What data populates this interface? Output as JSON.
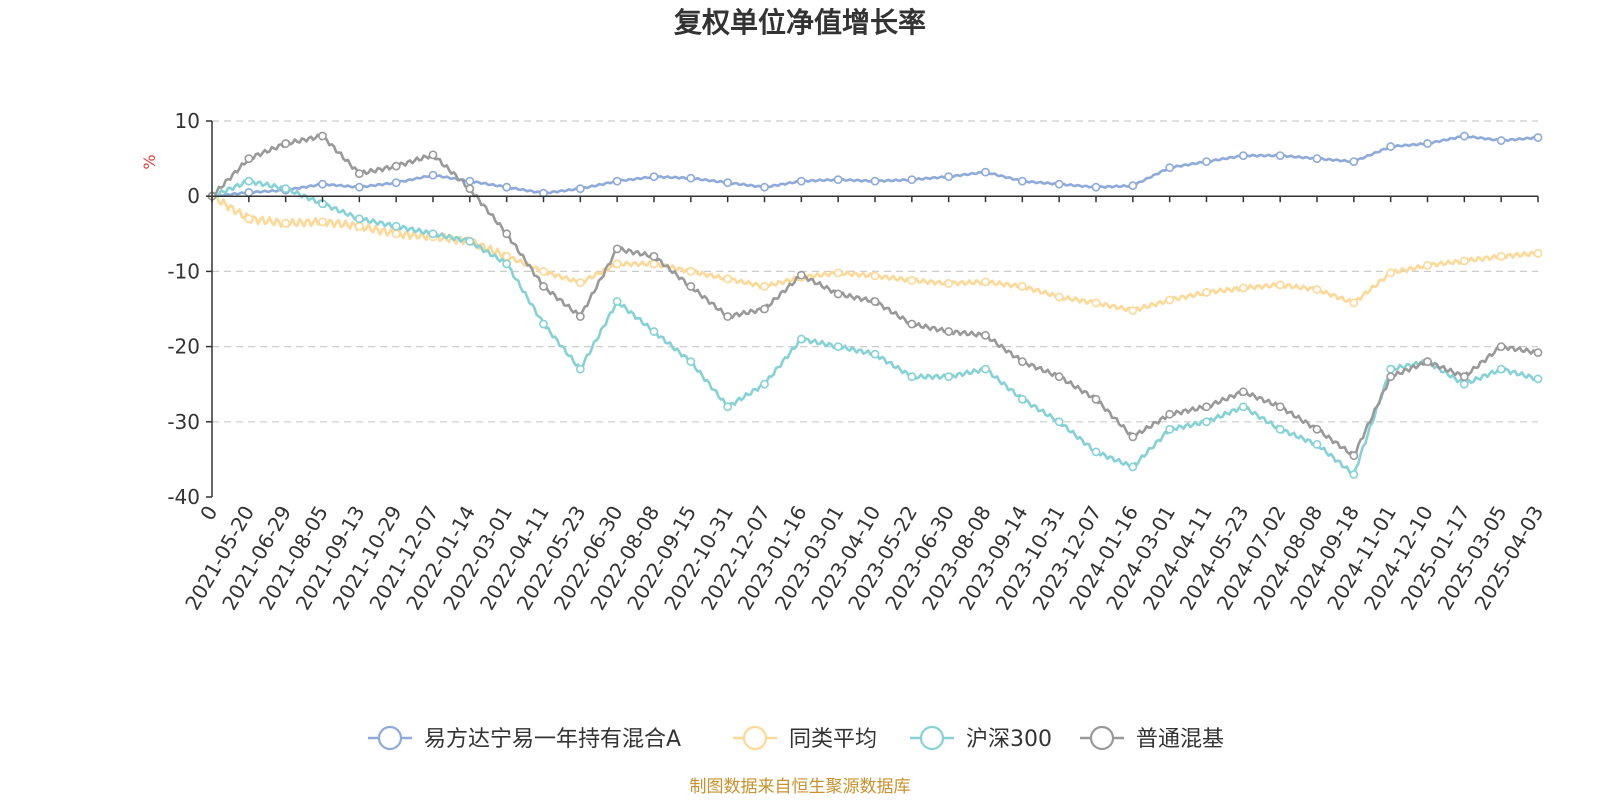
{
  "colors": {
    "fund": "#8eaadb",
    "peer_avg": "#fdd896",
    "hs300": "#85d2d6",
    "mixed": "#999999",
    "axis": "#333333",
    "grid": "#cccccc",
    "unit": "#e63a3a",
    "source": "#c8912c"
  },
  "chart_data": {
    "type": "line",
    "title": "复权单位净值增长率",
    "ylabel": "%",
    "ylim": [
      -40,
      10
    ],
    "y_ticks": [
      "10",
      "0",
      "-10",
      "-20",
      "-30",
      "-40"
    ],
    "y_tick_values": [
      10,
      0,
      -10,
      -20,
      -30,
      -40
    ],
    "grid": true,
    "legend_position": "bottom-center",
    "source_note": "制图数据来自恒生聚源数据库",
    "x_tick_labels": [
      "0",
      "2021-05-20",
      "2021-06-29",
      "2021-08-05",
      "2021-09-13",
      "2021-10-29",
      "2021-12-07",
      "2022-01-14",
      "2022-03-01",
      "2022-04-11",
      "2022-05-23",
      "2022-06-30",
      "2022-08-08",
      "2022-09-15",
      "2022-10-31",
      "2022-12-07",
      "2023-01-16",
      "2023-03-01",
      "2023-04-10",
      "2023-05-22",
      "2023-06-30",
      "2023-08-08",
      "2023-09-14",
      "2023-10-31",
      "2023-12-07",
      "2024-01-16",
      "2024-03-01",
      "2024-04-11",
      "2024-05-23",
      "2024-07-02",
      "2024-08-08",
      "2024-09-18",
      "2024-11-01",
      "2024-12-10",
      "2025-01-17",
      "2025-03-05",
      "2025-04-03"
    ],
    "series": [
      {
        "name": "易方达宁易一年持有混合A",
        "color_key": "fund",
        "values": [
          0,
          0.5,
          0.8,
          1.6,
          1.2,
          1.8,
          2.8,
          2.0,
          1.2,
          0.4,
          1.0,
          2.0,
          2.6,
          2.4,
          1.8,
          1.2,
          2.0,
          2.2,
          2.0,
          2.2,
          2.6,
          3.2,
          2.0,
          1.6,
          1.2,
          1.4,
          3.8,
          4.6,
          5.4,
          5.4,
          5.0,
          4.6,
          6.6,
          7.0,
          8.0,
          7.4,
          7.8
        ]
      },
      {
        "name": "同类平均",
        "color_key": "peer_avg",
        "values": [
          0,
          -3.0,
          -3.6,
          -3.4,
          -4.0,
          -5.0,
          -5.4,
          -6.0,
          -8.0,
          -10.0,
          -11.5,
          -9.0,
          -9.0,
          -10.0,
          -11.0,
          -12.0,
          -10.8,
          -10.2,
          -10.6,
          -11.2,
          -11.6,
          -11.4,
          -12.0,
          -13.4,
          -14.2,
          -15.2,
          -13.8,
          -12.8,
          -12.2,
          -11.8,
          -12.4,
          -14.2,
          -10.2,
          -9.2,
          -8.6,
          -8.0,
          -7.6
        ]
      },
      {
        "name": "沪深300",
        "color_key": "hs300",
        "values": [
          0,
          2.0,
          1.0,
          -1.0,
          -3.0,
          -4.0,
          -5.0,
          -6.0,
          -9.0,
          -17.0,
          -23.0,
          -14.0,
          -18.0,
          -22.0,
          -28.0,
          -25.0,
          -19.0,
          -20.0,
          -21.0,
          -24.0,
          -24.0,
          -23.0,
          -27.0,
          -30.0,
          -34.0,
          -36.0,
          -31.0,
          -30.0,
          -28.0,
          -31.0,
          -33.0,
          -37.0,
          -23.0,
          -22.0,
          -25.0,
          -23.0,
          -24.3
        ]
      },
      {
        "name": "普通混基",
        "color_key": "mixed",
        "values": [
          0,
          5.0,
          7.0,
          8.0,
          3.0,
          4.0,
          5.5,
          1.0,
          -5.0,
          -12.0,
          -16.0,
          -7.0,
          -8.0,
          -12.0,
          -16.0,
          -15.0,
          -10.5,
          -13.0,
          -14.0,
          -17.0,
          -18.0,
          -18.5,
          -22.0,
          -24.0,
          -27.0,
          -32.0,
          -29.0,
          -28.0,
          -26.0,
          -28.0,
          -31.0,
          -34.5,
          -24.0,
          -22.0,
          -24.0,
          -20.0,
          -20.8
        ]
      }
    ]
  }
}
